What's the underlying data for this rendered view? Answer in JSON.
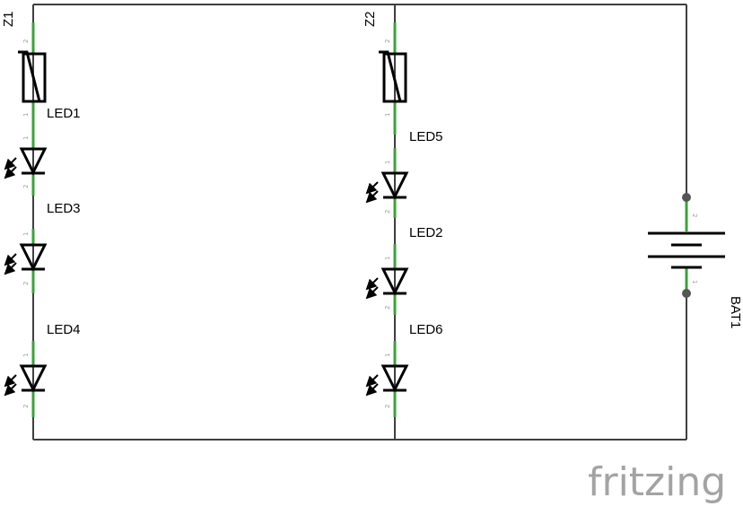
{
  "watermark": "fritzing",
  "labels": {
    "z1": "Z1",
    "z2": "Z2",
    "led1": "LED1",
    "led2": "LED2",
    "led3": "LED3",
    "led4": "LED4",
    "led5": "LED5",
    "led6": "LED6",
    "bat1": "BAT1"
  },
  "pins": {
    "one": "1",
    "two": "2"
  },
  "colors": {
    "wire": "#3f3f3f",
    "lead": "#3aa33a",
    "symbol": "#000000",
    "watermark": "#a3a3a3"
  }
}
